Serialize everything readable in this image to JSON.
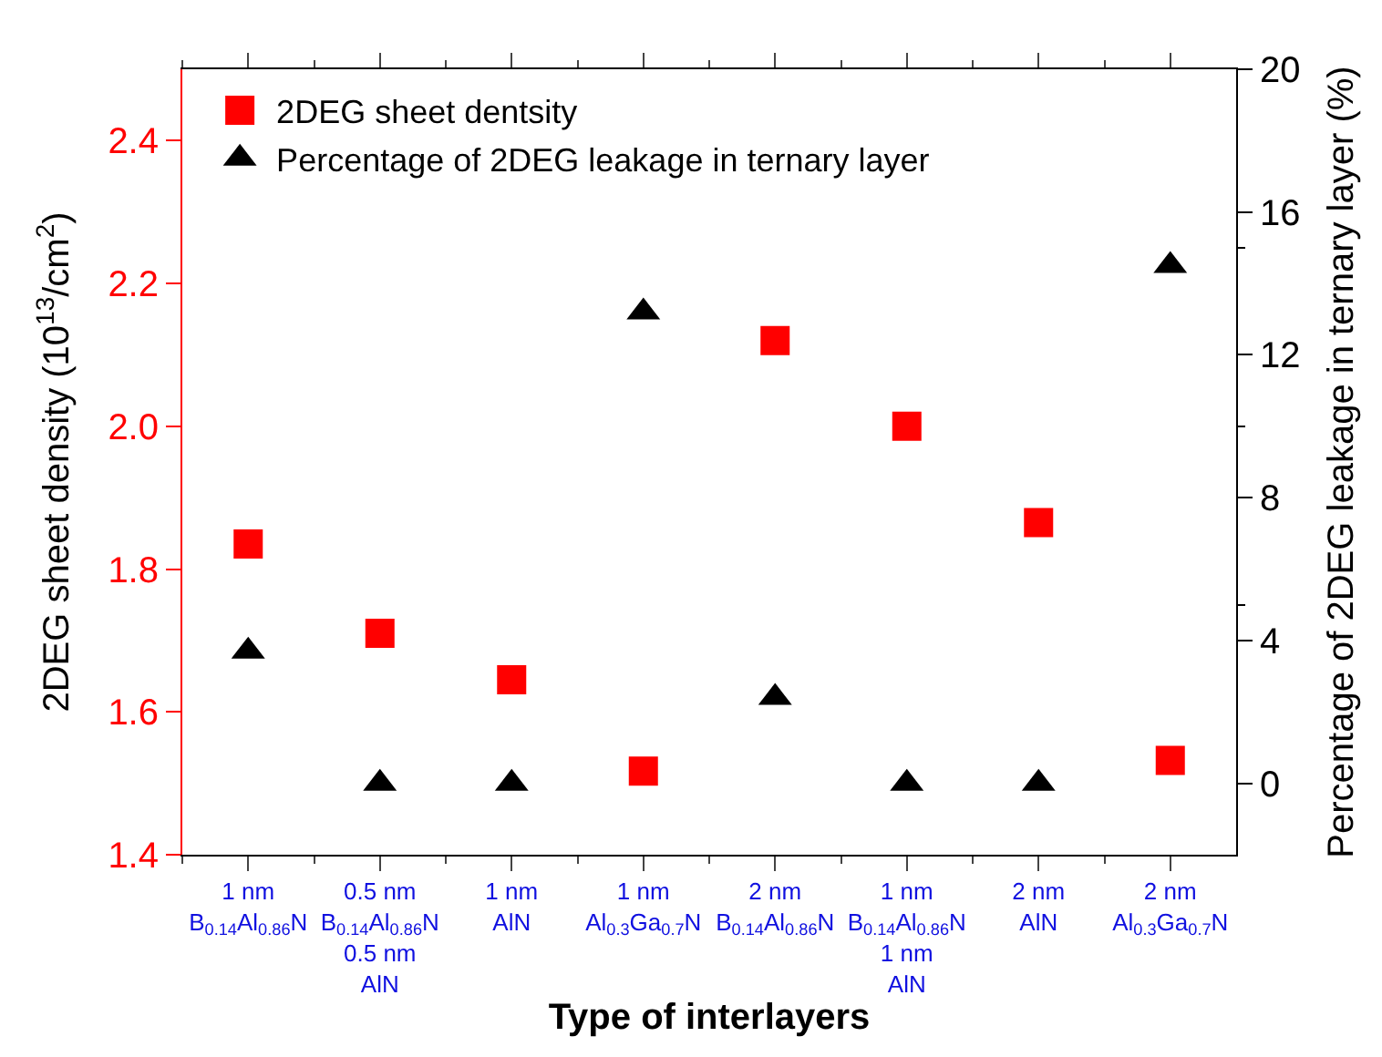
{
  "chart_data": {
    "type": "scatter",
    "xlabel": "Type of interlayers",
    "ylabel": "2DEG sheet density (10$^{13}$/cm$^{2}$)",
    "y2label": "Percentage of 2DEG leakage in ternary layer (%)",
    "categories": [
      "1 nm\nB$_{0.14}$Al$_{0.86}$N",
      "0.5 nm\nB$_{0.14}$Al$_{0.86}$N\n0.5 nm\nAlN",
      "1 nm\nAlN",
      "1 nm\nAl$_{0.3}$Ga$_{0.7}$N",
      "2 nm\nB$_{0.14}$Al$_{0.86}$N",
      "1 nm\nB$_{0.14}$Al$_{0.86}$N\n1 nm\nAlN",
      "2 nm\nAlN",
      "2 nm\nAl$_{0.3}$Ga$_{0.7}$N"
    ],
    "series": [
      {
        "name": "2DEG sheet dentsity",
        "color": "#ff0000",
        "marker": "square",
        "values": [
          1.835,
          1.71,
          1.645,
          1.517,
          2.12,
          2.0,
          1.865,
          1.532
        ]
      },
      {
        "name": "Percentage of 2DEG leakage in ternary layer",
        "color": "#000000",
        "marker": "triangle",
        "axis": "y2",
        "values": [
          3.7,
          0,
          0,
          13.2,
          2.4,
          0,
          0,
          14.5
        ]
      }
    ],
    "ylim": [
      1.4,
      2.5
    ],
    "yticks": [
      1.4,
      1.6,
      1.8,
      {
        "value": 2,
        "label": "2.0"
      },
      2.2,
      2.4
    ],
    "y2lim": [
      -2,
      20
    ],
    "y2ticks": [
      0,
      4,
      8,
      12,
      16,
      20
    ],
    "legend": "top left"
  }
}
